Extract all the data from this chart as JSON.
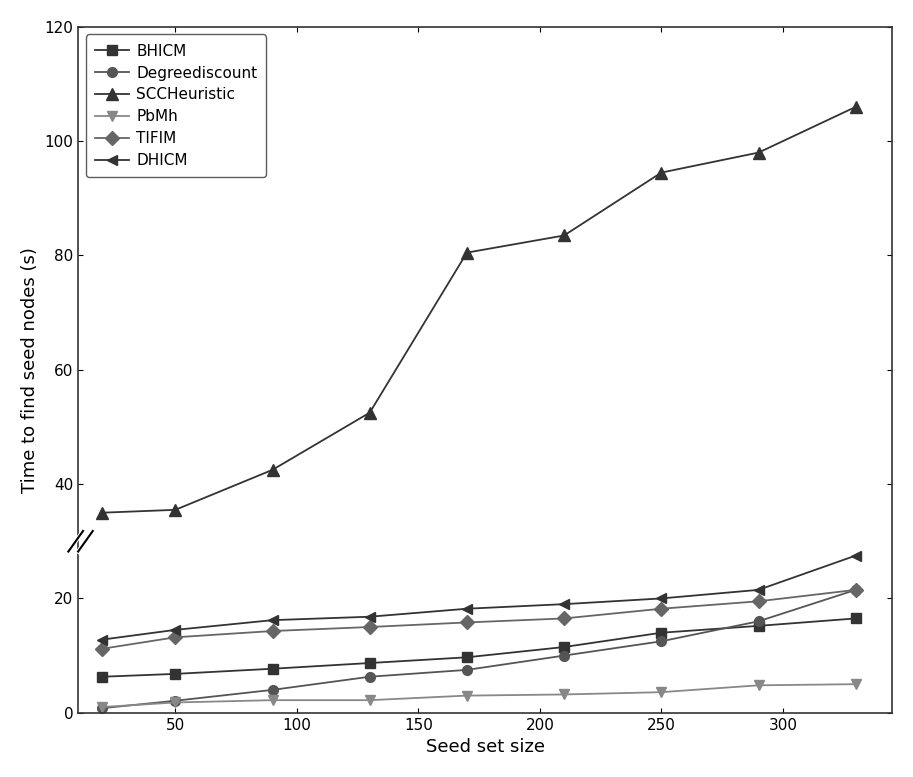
{
  "x": [
    20,
    50,
    90,
    130,
    170,
    210,
    250,
    290,
    330
  ],
  "BHICM": [
    6.3,
    6.8,
    7.7,
    8.7,
    9.7,
    11.5,
    14.0,
    15.2,
    16.5
  ],
  "Degreediscount": [
    0.8,
    2.1,
    4.0,
    6.3,
    7.5,
    10.0,
    12.5,
    16.0,
    21.5
  ],
  "SCCHeuristic": [
    35.0,
    35.5,
    42.5,
    52.5,
    80.5,
    83.5,
    94.5,
    98.0,
    106.0
  ],
  "PbMh": [
    1.0,
    1.8,
    2.2,
    2.2,
    3.0,
    3.2,
    3.6,
    4.8,
    5.0
  ],
  "TIFIM": [
    11.2,
    13.2,
    14.3,
    15.0,
    15.8,
    16.5,
    18.2,
    19.5,
    21.5
  ],
  "DHICM": [
    12.8,
    14.5,
    16.2,
    16.8,
    18.2,
    19.0,
    20.0,
    21.5,
    27.5
  ],
  "xlabel": "Seed set size",
  "ylabel": "Time to find seed nodes (s)",
  "ylim": [
    0,
    120
  ],
  "xlim": [
    10,
    345
  ],
  "yticks": [
    0,
    20,
    40,
    60,
    80,
    100,
    120
  ],
  "xticks": [
    50,
    100,
    150,
    200,
    250,
    300
  ],
  "legend_labels": [
    "BHICM",
    "Degreediscount",
    "SCCHeuristic",
    "PbMh",
    "TIFIM",
    "DHICM"
  ],
  "background_color": "#ffffff"
}
